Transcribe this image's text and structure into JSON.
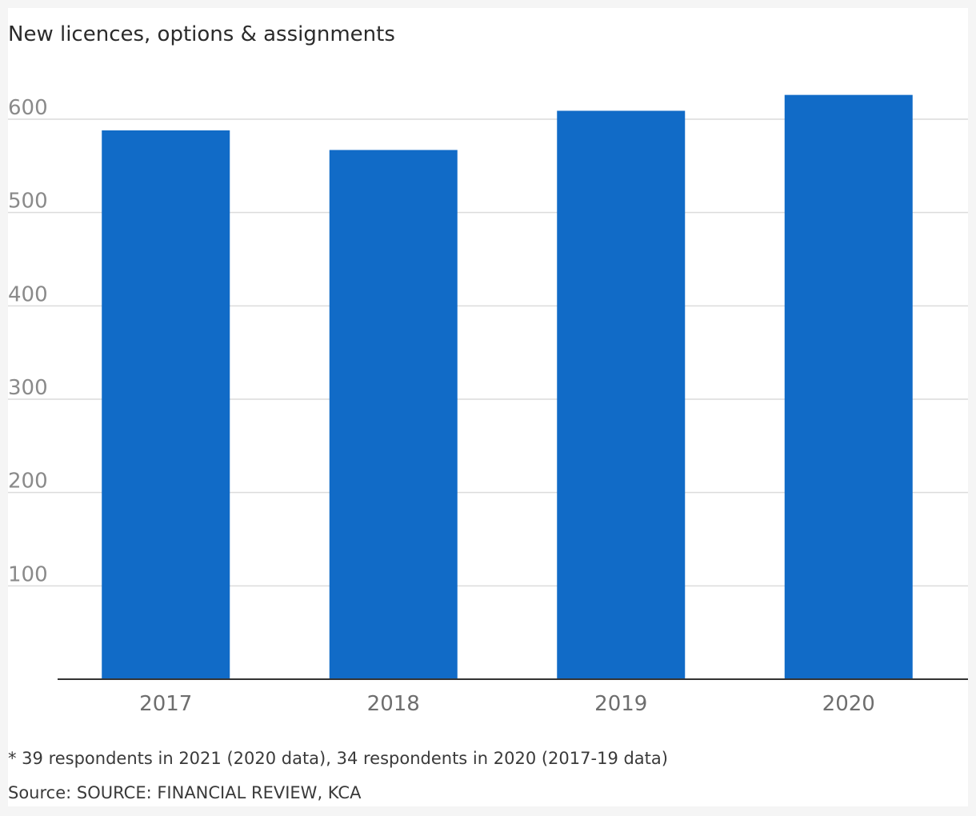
{
  "chart_data": {
    "type": "bar",
    "title": "New licences, options & assignments",
    "categories": [
      "2017",
      "2018",
      "2019",
      "2020"
    ],
    "values": [
      588,
      567,
      609,
      626
    ],
    "ylim": [
      0,
      600
    ],
    "yticks": [
      100,
      200,
      300,
      400,
      500,
      600
    ],
    "xlabel": "",
    "ylabel": "",
    "grid": true,
    "legend": "none",
    "bar_color": "#116bc7"
  },
  "footnote": "* 39 respondents in 2021 (2020 data), 34 respondents in 2020 (2017-19 data)",
  "source": "Source: SOURCE: FINANCIAL REVIEW, KCA"
}
